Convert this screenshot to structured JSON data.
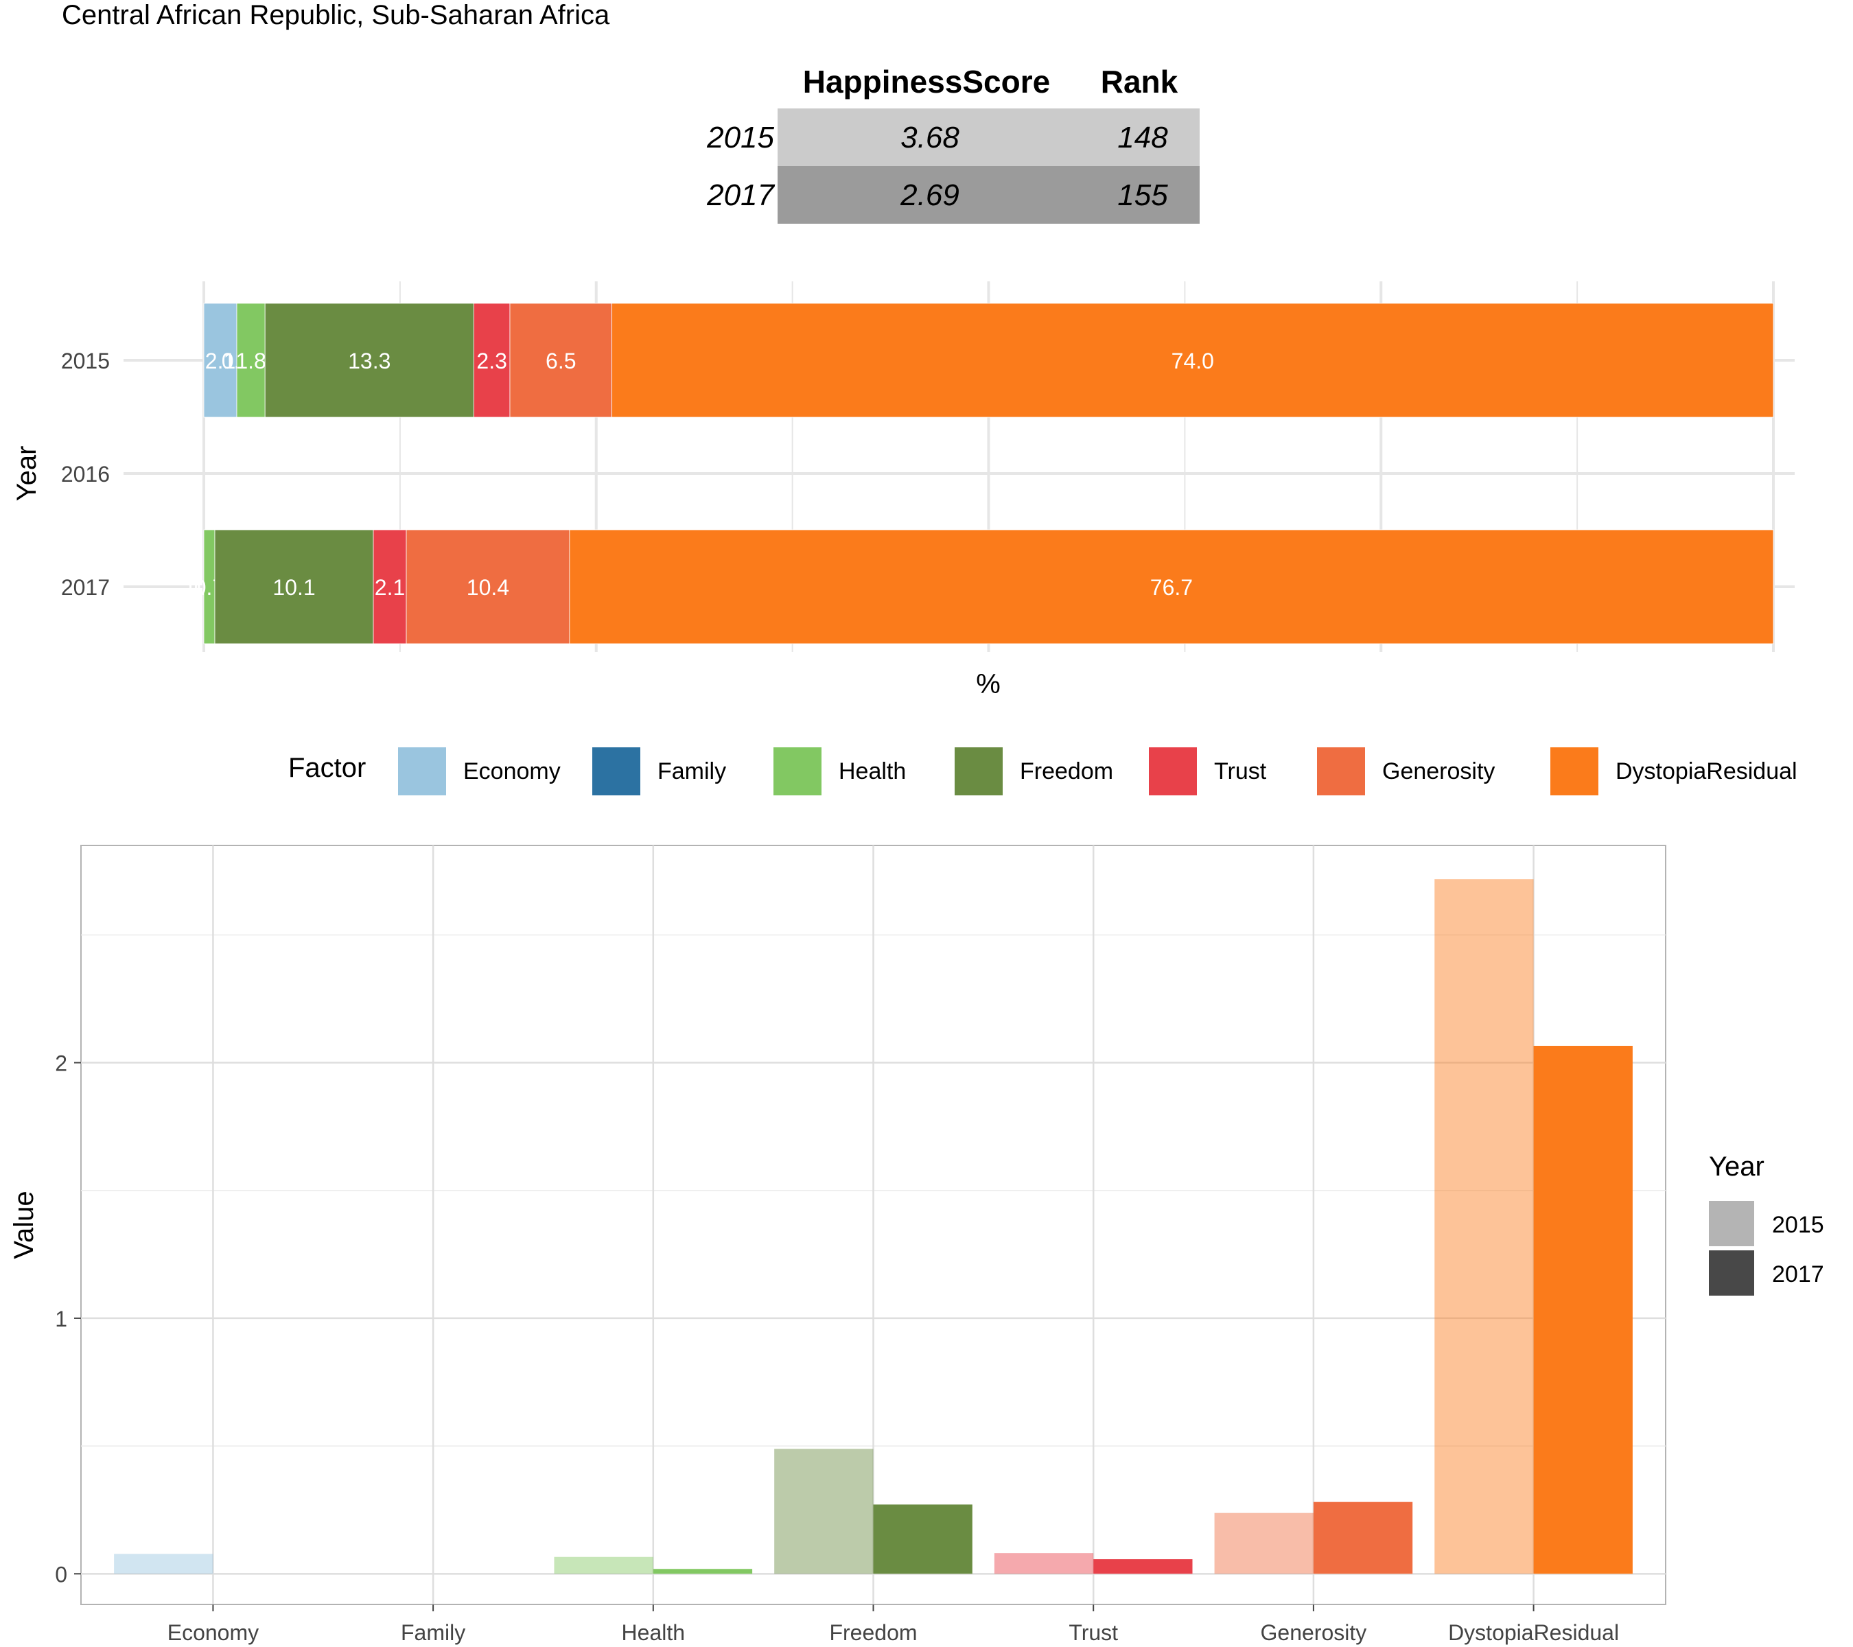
{
  "title": "Central African Republic, Sub-Saharan Africa",
  "summary_table": {
    "headers": [
      "HappinessScore",
      "Rank"
    ],
    "rows": [
      {
        "year": "2015",
        "score": "3.68",
        "rank": "148",
        "shade": "#cbcbcb"
      },
      {
        "year": "2017",
        "score": "2.69",
        "rank": "155",
        "shade": "#9b9b9b"
      }
    ]
  },
  "legend_factor": {
    "title": "Factor",
    "items": [
      {
        "label": "Economy",
        "color": "#9ac5df"
      },
      {
        "label": "Family",
        "color": "#2c72a2"
      },
      {
        "label": "Health",
        "color": "#82c862"
      },
      {
        "label": "Freedom",
        "color": "#6a8c42"
      },
      {
        "label": "Trust",
        "color": "#e8414a"
      },
      {
        "label": "Generosity",
        "color": "#ef6d41"
      },
      {
        "label": "DystopiaResidual",
        "color": "#fb7b1b"
      }
    ]
  },
  "legend_year": {
    "title": "Year",
    "items": [
      {
        "label": "2015",
        "color": "#b4b4b4"
      },
      {
        "label": "2017",
        "color": "#484848"
      }
    ]
  },
  "chart_data": [
    {
      "type": "bar",
      "orientation": "horizontal",
      "stacked": true,
      "xlabel": "%",
      "ylabel": "Year",
      "categories": [
        "2015",
        "2016",
        "2017"
      ],
      "xlim": [
        0,
        100
      ],
      "series": [
        {
          "name": "Economy",
          "values": [
            2.1,
            null,
            0.0
          ],
          "labels": [
            "2.1",
            "",
            "0.0"
          ]
        },
        {
          "name": "Family",
          "values": [
            0.0,
            null,
            0.0
          ],
          "labels": [
            "0.0",
            "",
            "0.0"
          ]
        },
        {
          "name": "Health",
          "values": [
            1.8,
            null,
            0.7
          ],
          "labels": [
            "1.8",
            "",
            "0.7"
          ]
        },
        {
          "name": "Freedom",
          "values": [
            13.3,
            null,
            10.1
          ],
          "labels": [
            "13.3",
            "",
            "10.1"
          ]
        },
        {
          "name": "Trust",
          "values": [
            2.3,
            null,
            2.1
          ],
          "labels": [
            "2.3",
            "",
            "2.1"
          ]
        },
        {
          "name": "Generosity",
          "values": [
            6.5,
            null,
            10.4
          ],
          "labels": [
            "6.5",
            "",
            "10.4"
          ]
        },
        {
          "name": "DystopiaResidual",
          "values": [
            74.0,
            null,
            76.7
          ],
          "labels": [
            "74.0",
            "",
            "76.7"
          ]
        }
      ],
      "grid": true
    },
    {
      "type": "bar",
      "grouped": true,
      "xlabel": "",
      "ylabel": "Value",
      "categories": [
        "Economy",
        "Family",
        "Health",
        "Freedom",
        "Trust",
        "Generosity",
        "DystopiaResidual"
      ],
      "ylim": [
        -0.12,
        2.85
      ],
      "yticks": [
        0,
        1,
        2
      ],
      "series": [
        {
          "name": "2015",
          "values": [
            0.078,
            0.0,
            0.066,
            0.489,
            0.081,
            0.238,
            2.718
          ]
        },
        {
          "name": "2017",
          "values": [
            0.0,
            0.0,
            0.019,
            0.271,
            0.057,
            0.281,
            2.066
          ]
        }
      ],
      "grid": true
    }
  ]
}
